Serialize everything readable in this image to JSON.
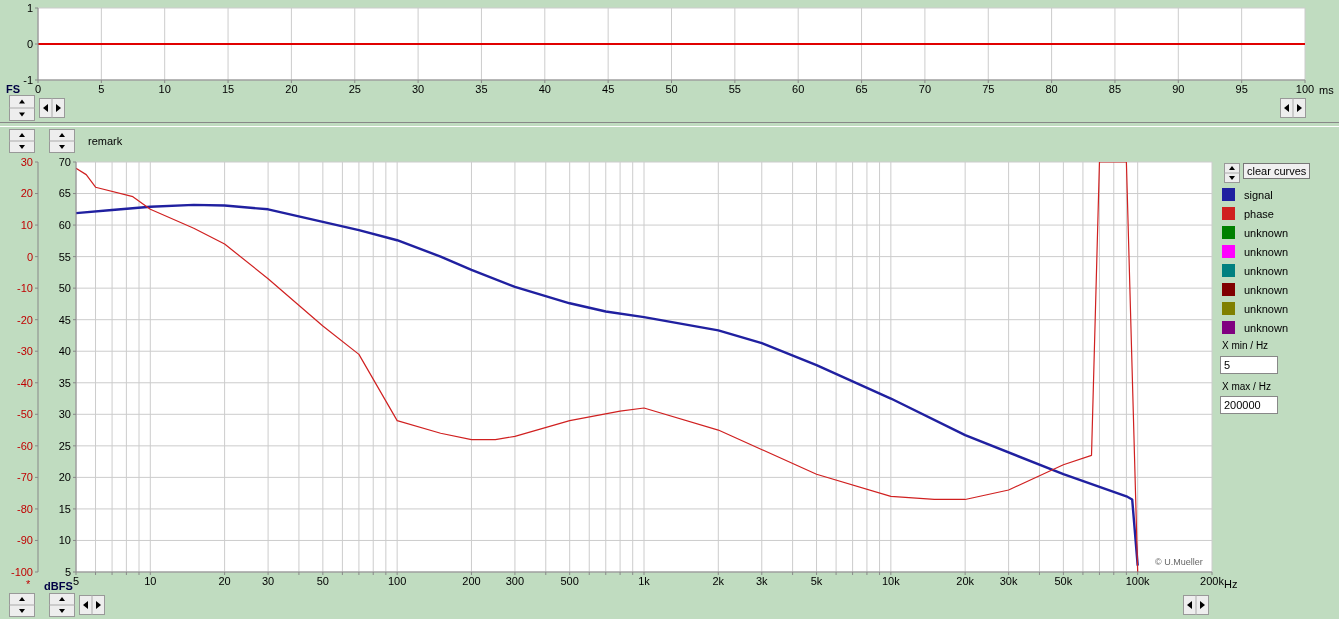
{
  "chart_data": [
    {
      "type": "line",
      "ylabel": "FS",
      "x": [
        0,
        100
      ],
      "xlabel": "ms",
      "series": [
        {
          "color": "#e00000",
          "values": [
            0,
            0
          ]
        }
      ],
      "xlim": [
        0,
        100
      ],
      "xticks": [
        0,
        5,
        10,
        15,
        20,
        25,
        30,
        35,
        40,
        45,
        50,
        55,
        60,
        65,
        70,
        75,
        80,
        85,
        90,
        95,
        100
      ],
      "ylim": [
        -1,
        1
      ],
      "yticks": [
        -1,
        0,
        1
      ],
      "grid": true
    },
    {
      "type": "line",
      "ylabel": "dBFS",
      "y2label": "*",
      "log": "x",
      "legend": "right",
      "grid": true,
      "annotations": [
        "remark",
        "© U.Mueller",
        "clear curves",
        "X min / Hz",
        "5",
        "X max / Hz",
        "200000"
      ],
      "series": [
        {
          "name": "signal",
          "color": "#2020a0",
          "x": [
            5,
            7,
            10,
            15,
            20,
            30,
            50,
            70,
            100,
            150,
            200,
            300,
            500,
            700,
            1000,
            2000,
            3000,
            5000,
            10000,
            20000,
            50000,
            90000,
            95000,
            100000
          ],
          "values": [
            61.9,
            62.4,
            62.9,
            63.2,
            63.1,
            62.5,
            60.5,
            59.2,
            57.6,
            55,
            52.9,
            50.2,
            47.6,
            46.3,
            45.4,
            43.3,
            41.3,
            37.8,
            32.5,
            26.7,
            20.5,
            17,
            16.5,
            6
          ]
        },
        {
          "name": "phase",
          "color": "#d02020",
          "axis": "y2",
          "x": [
            5,
            5.5,
            6,
            8.5,
            10,
            15,
            20,
            30,
            50,
            70,
            100,
            150,
            200,
            250,
            300,
            500,
            800,
            1000,
            2000,
            5000,
            10000,
            15000,
            20000,
            30000,
            50000,
            65000,
            70000,
            90000,
            100000
          ],
          "values": [
            28,
            26,
            22,
            19,
            15,
            9,
            4,
            -7,
            -22,
            -31,
            -52,
            -56,
            -58,
            -58,
            -57,
            -52,
            -49,
            -48,
            -55,
            -69,
            -76,
            -77,
            -77,
            -74,
            -66,
            -63,
            30,
            30,
            -100
          ]
        },
        {
          "name": "unknown",
          "color": "#008000"
        },
        {
          "name": "unknown",
          "color": "#ff00ff"
        },
        {
          "name": "unknown",
          "color": "#008080"
        },
        {
          "name": "unknown",
          "color": "#800000"
        },
        {
          "name": "unknown",
          "color": "#808000"
        },
        {
          "name": "unknown",
          "color": "#800080"
        }
      ],
      "xlim": [
        5,
        200000
      ],
      "xticks": [
        5,
        {
          "value": 6,
          "label": null
        },
        {
          "value": 7,
          "label": null
        },
        {
          "value": 8,
          "label": null
        },
        {
          "value": 9,
          "label": null
        },
        10,
        20,
        30,
        {
          "value": 40,
          "label": null
        },
        50,
        {
          "value": 60,
          "label": null
        },
        {
          "value": 70,
          "label": null
        },
        {
          "value": 80,
          "label": null
        },
        {
          "value": 90,
          "label": null
        },
        100,
        200,
        300,
        {
          "value": 400,
          "label": null
        },
        500,
        {
          "value": 600,
          "label": null
        },
        {
          "value": 700,
          "label": null
        },
        {
          "value": 800,
          "label": null
        },
        {
          "value": 900,
          "label": null
        },
        {
          "value": 1000,
          "label": "1k"
        },
        {
          "value": 2000,
          "label": "2k"
        },
        {
          "value": 3000,
          "label": "3k"
        },
        {
          "value": 4000,
          "label": null
        },
        {
          "value": 5000,
          "label": "5k"
        },
        {
          "value": 6000,
          "label": null
        },
        {
          "value": 7000,
          "label": null
        },
        {
          "value": 8000,
          "label": null
        },
        {
          "value": 9000,
          "label": null
        },
        {
          "value": 10000,
          "label": "10k"
        },
        {
          "value": 20000,
          "label": "20k"
        },
        {
          "value": 30000,
          "label": "30k"
        },
        {
          "value": 40000,
          "label": null
        },
        {
          "value": 50000,
          "label": "50k"
        },
        {
          "value": 60000,
          "label": null
        },
        {
          "value": 70000,
          "label": null
        },
        {
          "value": 80000,
          "label": null
        },
        {
          "value": 90000,
          "label": null
        },
        {
          "value": 100000,
          "label": "100k"
        },
        {
          "value": 200000,
          "label": "200k"
        }
      ],
      "xlabel": "Hz",
      "ylim": [
        5,
        70
      ],
      "yticks": [
        5,
        10,
        15,
        20,
        25,
        30,
        35,
        40,
        45,
        50,
        55,
        60,
        65,
        70
      ],
      "y2lim": [
        -100,
        30
      ],
      "y2ticks": [
        -100,
        -90,
        -80,
        -70,
        -60,
        -50,
        -40,
        -30,
        -20,
        -10,
        0,
        10,
        20,
        30
      ]
    }
  ]
}
